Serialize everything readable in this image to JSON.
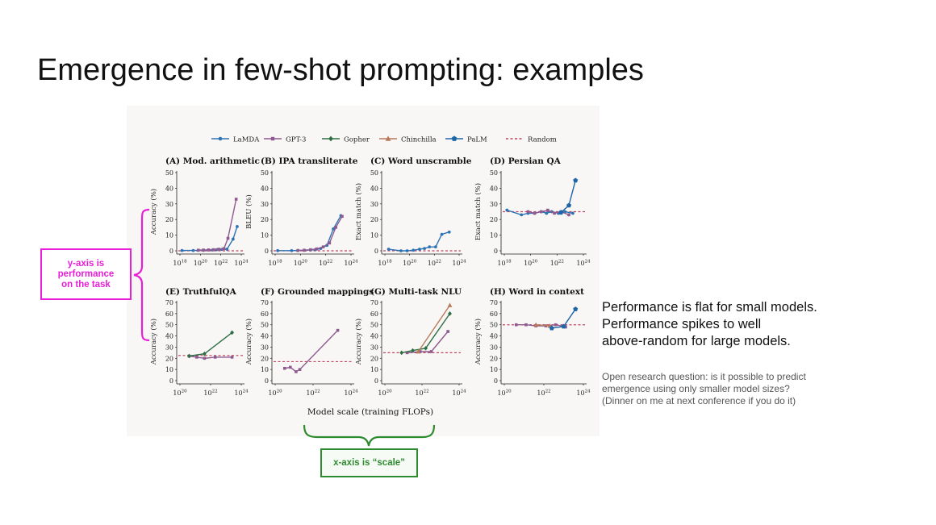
{
  "slide": {
    "title": "Emergence in few-shot prompting: examples",
    "y_annotation": [
      "y-axis is",
      "performance",
      "on the task"
    ],
    "x_annotation": "x-axis is “scale”",
    "takeaways": [
      "Performance is flat for small models.",
      "Performance spikes to well",
      "above-random for large models."
    ],
    "note": [
      "Open research question: is it possible to predict",
      "emergence using only smaller model sizes?",
      "(Dinner on me at next conference if you do it)"
    ]
  },
  "colors": {
    "LaMDA": "#2e74b5",
    "GPT-3": "#8e5a8f",
    "Gopher": "#2d6e45",
    "Chinchilla": "#b87a5c",
    "PaLM": "#1f66a8",
    "Random": "#c0445f",
    "annot_y": "#e91ed8",
    "annot_x": "#2f8b2f"
  },
  "chart_data": {
    "type": "line",
    "shared_xlabel": "Model scale (training FLOPs)",
    "legend": [
      "LaMDA",
      "GPT-3",
      "Gopher",
      "Chinchilla",
      "PaLM",
      "Random"
    ],
    "legend_placement": "top",
    "x_scale": "log",
    "panels": [
      {
        "title": "(A) Mod. arithmetic",
        "ylabel": "Accuracy (%)",
        "ylim": [
          0,
          50
        ],
        "yticks": [
          0,
          10,
          20,
          30,
          40,
          50
        ],
        "xlim_exp": [
          18,
          24
        ],
        "xticks_exp": [
          18,
          20,
          22,
          24
        ],
        "random": 0,
        "series": [
          {
            "name": "LaMDA",
            "points": [
              [
                18.2,
                0.2
              ],
              [
                19.3,
                0.2
              ],
              [
                19.8,
                0.3
              ],
              [
                20.3,
                0.3
              ],
              [
                20.8,
                0.5
              ],
              [
                21.2,
                0.5
              ],
              [
                21.6,
                0.7
              ],
              [
                22.1,
                0.9
              ],
              [
                22.6,
                1
              ],
              [
                23.2,
                7.5
              ],
              [
                23.6,
                15.5
              ]
            ]
          },
          {
            "name": "GPT-3",
            "points": [
              [
                19.8,
                0.4
              ],
              [
                20.3,
                0.5
              ],
              [
                20.8,
                0.6
              ],
              [
                21.3,
                0.7
              ],
              [
                21.8,
                1
              ],
              [
                22.3,
                1.4
              ],
              [
                22.7,
                8
              ],
              [
                23.5,
                33
              ]
            ]
          }
        ]
      },
      {
        "title": "(B) IPA transliterate",
        "ylabel": "BLEU (%)",
        "ylim": [
          0,
          50
        ],
        "yticks": [
          0,
          10,
          20,
          30,
          40,
          50
        ],
        "xlim_exp": [
          18,
          24
        ],
        "xticks_exp": [
          18,
          20,
          22,
          24
        ],
        "random": 0,
        "series": [
          {
            "name": "LaMDA",
            "points": [
              [
                18.2,
                0.1
              ],
              [
                19.3,
                0.1
              ],
              [
                19.8,
                0.2
              ],
              [
                20.3,
                0.3
              ],
              [
                20.8,
                0.5
              ],
              [
                21.2,
                0.8
              ],
              [
                21.6,
                1.5
              ],
              [
                22.1,
                3.5
              ],
              [
                22.6,
                14
              ],
              [
                23.2,
                22.5
              ]
            ]
          },
          {
            "name": "GPT-3",
            "points": [
              [
                19.8,
                0.2
              ],
              [
                20.3,
                0.4
              ],
              [
                20.8,
                0.7
              ],
              [
                21.3,
                1.2
              ],
              [
                21.8,
                2.5
              ],
              [
                22.3,
                5
              ],
              [
                22.8,
                15
              ],
              [
                23.3,
                22
              ]
            ]
          }
        ]
      },
      {
        "title": "(C) Word unscramble",
        "ylabel": "Exact match (%)",
        "ylim": [
          0,
          50
        ],
        "yticks": [
          0,
          10,
          20,
          30,
          40,
          50
        ],
        "xlim_exp": [
          18,
          24
        ],
        "xticks_exp": [
          18,
          20,
          22,
          24
        ],
        "random": 0,
        "series": [
          {
            "name": "LaMDA",
            "points": [
              [
                18.3,
                1
              ],
              [
                19.3,
                0
              ],
              [
                19.8,
                0
              ],
              [
                20.3,
                0.4
              ],
              [
                20.8,
                1
              ],
              [
                21.2,
                1.5
              ],
              [
                21.6,
                2.5
              ],
              [
                22.1,
                2.5
              ],
              [
                22.6,
                10.5
              ],
              [
                23.2,
                12
              ]
            ]
          }
        ]
      },
      {
        "title": "(D) Persian QA",
        "ylabel": "Exact match (%)",
        "ylim": [
          0,
          50
        ],
        "yticks": [
          0,
          10,
          20,
          30,
          40,
          50
        ],
        "xlim_exp": [
          18,
          24
        ],
        "xticks_exp": [
          18,
          20,
          22,
          24
        ],
        "random": 25,
        "series": [
          {
            "name": "LaMDA",
            "points": [
              [
                18.2,
                26
              ],
              [
                19.3,
                23
              ],
              [
                19.8,
                24
              ],
              [
                20.3,
                24
              ],
              [
                20.8,
                25
              ],
              [
                21.2,
                24
              ],
              [
                21.6,
                25
              ],
              [
                22.1,
                24
              ],
              [
                22.6,
                25
              ],
              [
                23.2,
                24
              ]
            ]
          },
          {
            "name": "GPT-3",
            "points": [
              [
                19.8,
                25
              ],
              [
                20.3,
                24
              ],
              [
                20.8,
                25
              ],
              [
                21.3,
                26
              ],
              [
                21.8,
                24
              ],
              [
                22.3,
                25
              ],
              [
                22.9,
                23
              ]
            ]
          },
          {
            "name": "PaLM",
            "points": [
              [
                22.3,
                24.5
              ],
              [
                22.9,
                29
              ],
              [
                23.4,
                45
              ]
            ]
          }
        ]
      },
      {
        "title": "(E) TruthfulQA",
        "ylabel": "Accuracy (%)",
        "ylim": [
          0,
          70
        ],
        "yticks": [
          0,
          10,
          20,
          30,
          40,
          50,
          60,
          70
        ],
        "xlim_exp": [
          20,
          24
        ],
        "xticks_exp": [
          20,
          22,
          24
        ],
        "random": 22.5,
        "series": [
          {
            "name": "GPT-3",
            "points": [
              [
                20.6,
                22
              ],
              [
                21.1,
                21
              ],
              [
                21.6,
                20
              ],
              [
                22.3,
                21
              ],
              [
                23.4,
                21
              ]
            ]
          },
          {
            "name": "Gopher",
            "points": [
              [
                20.6,
                22
              ],
              [
                21.6,
                24
              ],
              [
                23.4,
                43
              ]
            ]
          }
        ]
      },
      {
        "title": "(F) Grounded mappings",
        "ylabel": "Accuracy (%)",
        "ylim": [
          0,
          70
        ],
        "yticks": [
          0,
          10,
          20,
          30,
          40,
          50,
          60,
          70
        ],
        "xlim_exp": [
          20,
          24
        ],
        "xticks_exp": [
          20,
          22,
          24
        ],
        "random": 17,
        "series": [
          {
            "name": "GPT-3",
            "points": [
              [
                20.5,
                11
              ],
              [
                20.8,
                12
              ],
              [
                21.1,
                8
              ],
              [
                21.3,
                10
              ],
              [
                23.3,
                45
              ]
            ]
          }
        ]
      },
      {
        "title": "(G) Multi-task NLU",
        "ylabel": "Accuracy (%)",
        "ylim": [
          0,
          70
        ],
        "yticks": [
          0,
          10,
          20,
          30,
          40,
          50,
          60,
          70
        ],
        "xlim_exp": [
          20,
          24
        ],
        "xticks_exp": [
          20,
          22,
          24
        ],
        "random": 25,
        "series": [
          {
            "name": "GPT-3",
            "points": [
              [
                21.2,
                25
              ],
              [
                21.9,
                26
              ],
              [
                22.5,
                26
              ],
              [
                23.4,
                44
              ]
            ]
          },
          {
            "name": "Gopher",
            "points": [
              [
                20.9,
                25
              ],
              [
                21.5,
                27
              ],
              [
                22.2,
                29
              ],
              [
                23.5,
                60
              ]
            ]
          },
          {
            "name": "Chinchilla",
            "points": [
              [
                21.8,
                26
              ],
              [
                23.5,
                67.5
              ]
            ]
          }
        ]
      },
      {
        "title": "(H) Word in context",
        "ylabel": "Accuracy (%)",
        "ylim": [
          0,
          70
        ],
        "yticks": [
          0,
          10,
          20,
          30,
          40,
          50,
          60,
          70
        ],
        "xlim_exp": [
          20,
          24
        ],
        "xticks_exp": [
          20,
          22,
          24
        ],
        "random": 50,
        "series": [
          {
            "name": "GPT-3",
            "points": [
              [
                20.6,
                50
              ],
              [
                21.1,
                50
              ],
              [
                21.6,
                49
              ],
              [
                22.1,
                49
              ],
              [
                22.6,
                50
              ],
              [
                23.1,
                48
              ]
            ]
          },
          {
            "name": "Chinchilla",
            "points": [
              [
                21.6,
                50
              ],
              [
                22.3,
                49
              ]
            ]
          },
          {
            "name": "PaLM",
            "points": [
              [
                22.4,
                47
              ],
              [
                23.0,
                48.5
              ],
              [
                23.6,
                64
              ]
            ]
          }
        ]
      }
    ]
  }
}
